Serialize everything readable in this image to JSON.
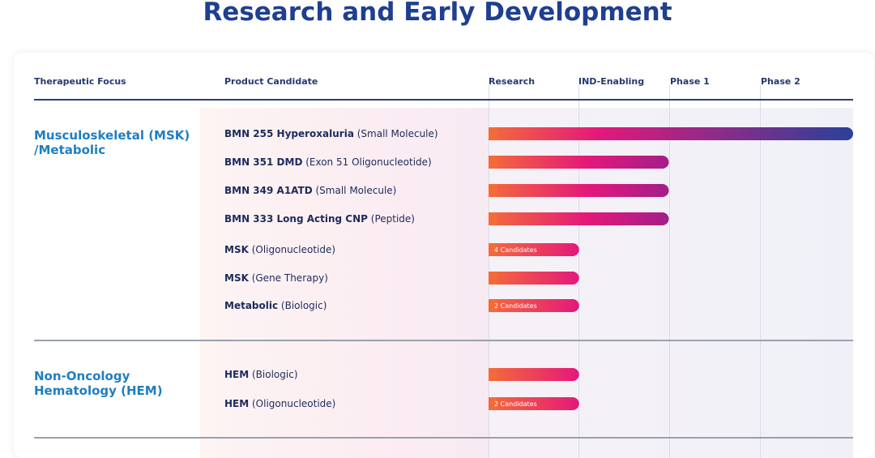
{
  "page": {
    "title": "Research and Early Development"
  },
  "headers": {
    "therapeutic_focus": "Therapeutic Focus",
    "product_candidate": "Product Candidate",
    "research": "Research",
    "ind_enabling": "IND-Enabling",
    "phase1": "Phase 1",
    "phase2": "Phase 2"
  },
  "colors": {
    "title": "#1f3f8f",
    "focus": "#1f7ec2",
    "bar_start": "#f46b3a",
    "bar_mid": "#e4187a",
    "bar_end": "#2a4199"
  },
  "chart_data": {
    "type": "bar",
    "title": "Research and Early Development",
    "stages": [
      "Research",
      "IND-Enabling",
      "Phase 1",
      "Phase 2"
    ],
    "sections": [
      {
        "focus": "Musculoskeletal (MSK) /Metabolic",
        "candidates": [
          {
            "name": "BMN 255 Hyperoxaluria",
            "modality": "(Small Molecule)",
            "progress": 4,
            "label": ""
          },
          {
            "name": "BMN 351 DMD",
            "modality": "(Exon 51 Oligonucleotide)",
            "progress": 2,
            "label": ""
          },
          {
            "name": "BMN 349 A1ATD",
            "modality": "(Small Molecule)",
            "progress": 2,
            "label": ""
          },
          {
            "name": "BMN 333 Long Acting CNP",
            "modality": "(Peptide)",
            "progress": 2,
            "label": ""
          },
          {
            "name": "MSK",
            "modality": "(Oligonucleotide)",
            "progress": 1,
            "label": "4 Candidates"
          },
          {
            "name": "MSK",
            "modality": "(Gene Therapy)",
            "progress": 1,
            "label": ""
          },
          {
            "name": "Metabolic",
            "modality": "(Biologic)",
            "progress": 1,
            "label": "2 Candidates"
          }
        ]
      },
      {
        "focus": "Non-Oncology Hematology (HEM)",
        "candidates": [
          {
            "name": "HEM",
            "modality": "(Biologic)",
            "progress": 1,
            "label": ""
          },
          {
            "name": "HEM",
            "modality": "(Oligonucleotide)",
            "progress": 1,
            "label": "2 Candidates"
          }
        ]
      }
    ]
  }
}
